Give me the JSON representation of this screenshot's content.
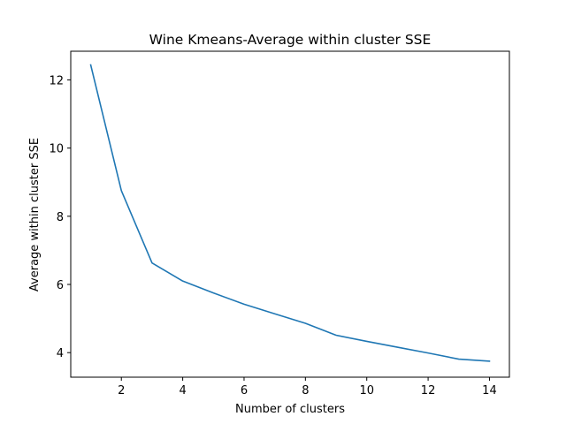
{
  "chart_data": {
    "type": "line",
    "title": "Wine Kmeans-Average within cluster SSE",
    "xlabel": "Number of clusters",
    "ylabel": "Average within cluster SSE",
    "x": [
      1,
      2,
      3,
      4,
      5,
      6,
      7,
      8,
      9,
      10,
      11,
      12,
      13,
      14
    ],
    "series": [
      {
        "values": [
          12.44,
          8.75,
          6.63,
          6.1,
          5.75,
          5.42,
          5.14,
          4.86,
          4.51,
          4.33,
          4.16,
          3.99,
          3.81,
          3.75
        ],
        "color": "#1f77b4"
      }
    ],
    "xlim": [
      0.35,
      14.65
    ],
    "ylim": [
      3.28,
      12.84
    ],
    "xticks": [
      "2",
      "4",
      "6",
      "8",
      "10",
      "12",
      "14"
    ],
    "yticks": [
      "4",
      "6",
      "8",
      "10",
      "12"
    ],
    "grid": false
  }
}
